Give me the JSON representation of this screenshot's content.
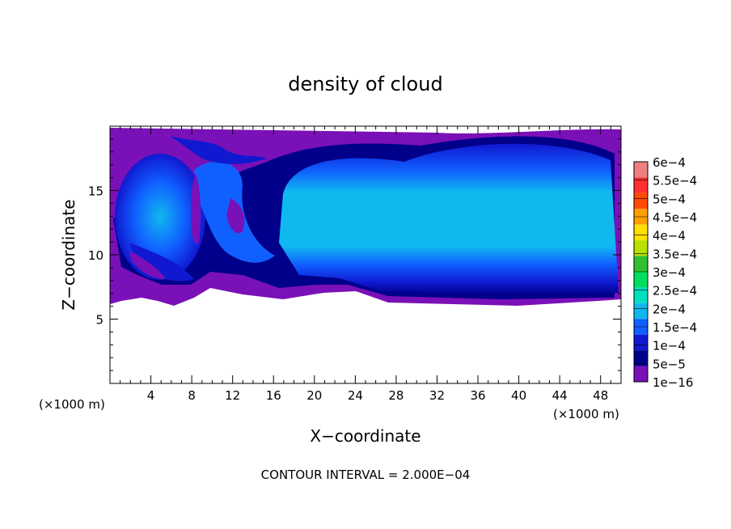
{
  "chart_data": {
    "type": "heatmap",
    "title": "density of cloud",
    "xlabel": "X−coordinate",
    "ylabel": "Z−coordinate",
    "x_unit_left": "(×1000 m)",
    "x_unit_right": "(×1000 m)",
    "xlim": [
      0,
      50
    ],
    "ylim": [
      0,
      20
    ],
    "x_ticks": [
      "4",
      "8",
      "12",
      "16",
      "20",
      "24",
      "28",
      "32",
      "36",
      "40",
      "44",
      "48"
    ],
    "y_ticks": [
      "5",
      "10",
      "15"
    ],
    "x_tick_values": [
      4,
      8,
      12,
      16,
      20,
      24,
      28,
      32,
      36,
      40,
      44,
      48
    ],
    "y_tick_values": [
      5,
      10,
      15
    ],
    "colorbar": {
      "labels": [
        "6e−4",
        "5.5e−4",
        "5e−4",
        "4.5e−4",
        "4e−4",
        "3.5e−4",
        "3e−4",
        "2.5e−4",
        "2e−4",
        "1.5e−4",
        "1e−4",
        "5e−5",
        "1e−16"
      ],
      "colors": [
        "#f08080",
        "#ff3030",
        "#ff4a00",
        "#ffa000",
        "#ffe000",
        "#b8e000",
        "#30c030",
        "#00e060",
        "#00e0c0",
        "#10b8f0",
        "#1060ff",
        "#1018d0",
        "#00008a",
        "#7a10b8"
      ]
    },
    "footer": "CONTOUR INTERVAL = 2.000E−04",
    "field_notes": {
      "cloud_base_z": 6.5,
      "cloud_top_z": 19.5,
      "max_density_approx": 0.00015,
      "background": "white (no cloud)"
    }
  }
}
